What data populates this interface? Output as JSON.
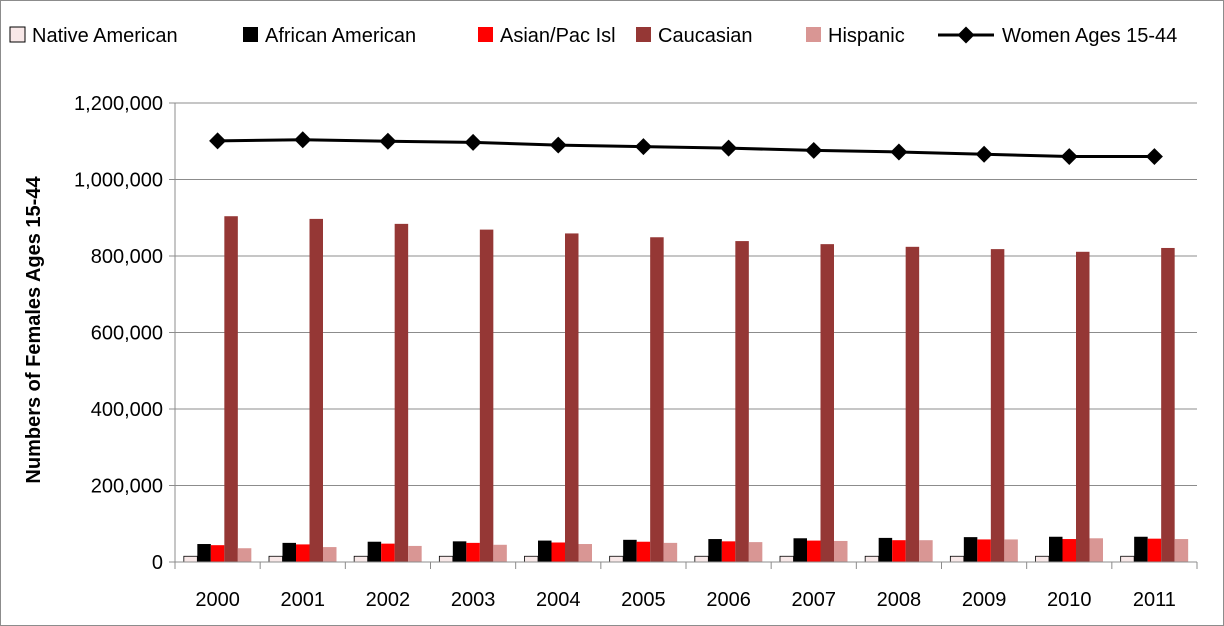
{
  "chart_data": {
    "type": "bar",
    "title": "",
    "xlabel": "",
    "ylabel": "Numbers of Females Ages 15-44",
    "ylim": [
      0,
      1200000
    ],
    "yticks": [
      0,
      200000,
      400000,
      600000,
      800000,
      1000000,
      1200000
    ],
    "ytick_labels": [
      "0",
      "200,000",
      "400,000",
      "600,000",
      "800,000",
      "1,000,000",
      "1,200,000"
    ],
    "grid": true,
    "legend_position": "top",
    "categories": [
      "2000",
      "2001",
      "2002",
      "2003",
      "2004",
      "2005",
      "2006",
      "2007",
      "2008",
      "2009",
      "2010",
      "2011"
    ],
    "series": [
      {
        "name": "Native American",
        "kind": "bar",
        "color": "#f8e8e8",
        "values": [
          15000,
          15000,
          15000,
          15000,
          15000,
          15000,
          15000,
          15000,
          15000,
          15000,
          15000,
          15000
        ]
      },
      {
        "name": "African American",
        "kind": "bar",
        "color": "#000000",
        "values": [
          47000,
          50000,
          53000,
          54000,
          56000,
          58000,
          60000,
          62000,
          63000,
          65000,
          66000,
          66000
        ]
      },
      {
        "name": "Asian/Pac Isl",
        "kind": "bar",
        "color": "#ff0000",
        "values": [
          44000,
          46000,
          48000,
          50000,
          51000,
          53000,
          54000,
          56000,
          57000,
          59000,
          60000,
          61000
        ]
      },
      {
        "name": "Caucasian",
        "kind": "bar",
        "color": "#953735",
        "values": [
          904000,
          897000,
          884000,
          869000,
          859000,
          849000,
          839000,
          831000,
          824000,
          818000,
          811000,
          821000
        ]
      },
      {
        "name": "Hispanic",
        "kind": "bar",
        "color": "#d99694",
        "values": [
          36000,
          39000,
          42000,
          45000,
          47000,
          50000,
          52000,
          55000,
          57000,
          59000,
          62000,
          60000
        ]
      },
      {
        "name": "Women Ages 15-44",
        "kind": "line",
        "color": "#000000",
        "values": [
          1101000,
          1104000,
          1100000,
          1097000,
          1090000,
          1086000,
          1082000,
          1076000,
          1072000,
          1066000,
          1060000,
          1060000
        ]
      }
    ]
  }
}
